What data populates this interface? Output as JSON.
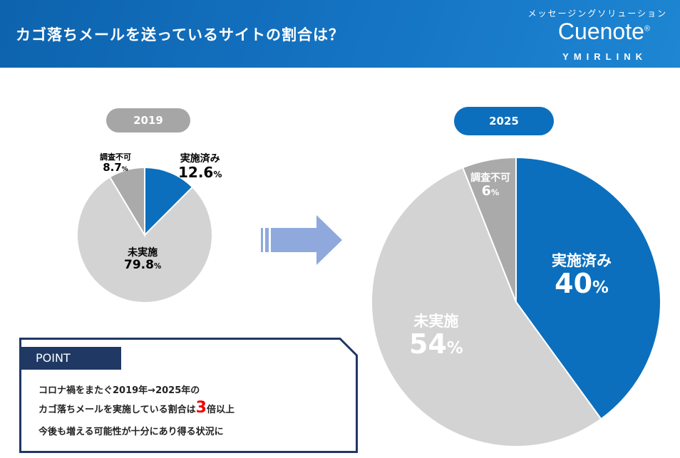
{
  "header": {
    "title": "カゴ落ちメールを送っているサイトの割合は？",
    "tagline": "メッセージングソリューション",
    "logo": "Cuenote",
    "logo_mark": "®",
    "company": "YMIRLINK"
  },
  "colors": {
    "done": "#0b6fbd",
    "not_done": "#d3d3d3",
    "unknown": "#aaaaaa",
    "pill_2019": "#a6a6a6",
    "pill_2025": "#0b6fbd",
    "arrow": "#8fa9dc"
  },
  "chart_data": [
    {
      "type": "pie",
      "title": "2019",
      "labels": [
        "実施済み",
        "未実施",
        "調査不可"
      ],
      "values": [
        12.6,
        79.8,
        8.7
      ],
      "unit": "%"
    },
    {
      "type": "pie",
      "title": "2025",
      "labels": [
        "実施済み",
        "未実施",
        "調査不可"
      ],
      "values": [
        40,
        54,
        6
      ],
      "unit": "%"
    }
  ],
  "point": {
    "heading": "POINT",
    "line1": "コロナ禍をまたぐ2019年→2025年の",
    "line2a": "カゴ落ちメールを実施している割合は",
    "line2b": "3",
    "line2c": "倍以上",
    "line3": "今後も増える可能性が十分にあり得る状況に"
  }
}
